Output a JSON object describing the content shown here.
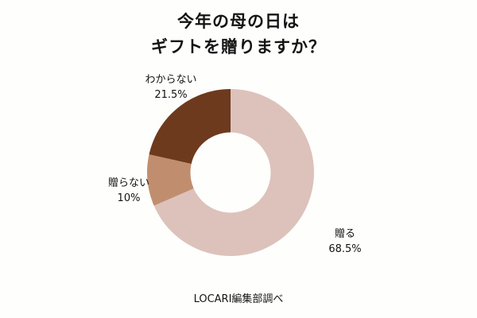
{
  "background": "#fefefd",
  "title": {
    "line1": "今年の母の日は",
    "line2": "ギフトを贈りますか？"
  },
  "source_note": "LOCARI編集部調べ",
  "chart_data": {
    "type": "pie",
    "subtype": "donut",
    "title": "今年の母の日は ギフトを贈りますか？",
    "start_angle_deg": 0,
    "direction": "clockwise",
    "inner_radius_ratio": 0.48,
    "legend_position": "none",
    "segments": [
      {
        "label": "贈る",
        "value": 68.5,
        "pct_label": "68.5%",
        "color": "#dcc2ba"
      },
      {
        "label": "贈らない",
        "value": 10,
        "pct_label": "10%",
        "color": "#c08e6f"
      },
      {
        "label": "わからない",
        "value": 21.5,
        "pct_label": "21.5%",
        "color": "#6d3a1e"
      }
    ],
    "source": "LOCARI編集部調べ"
  }
}
